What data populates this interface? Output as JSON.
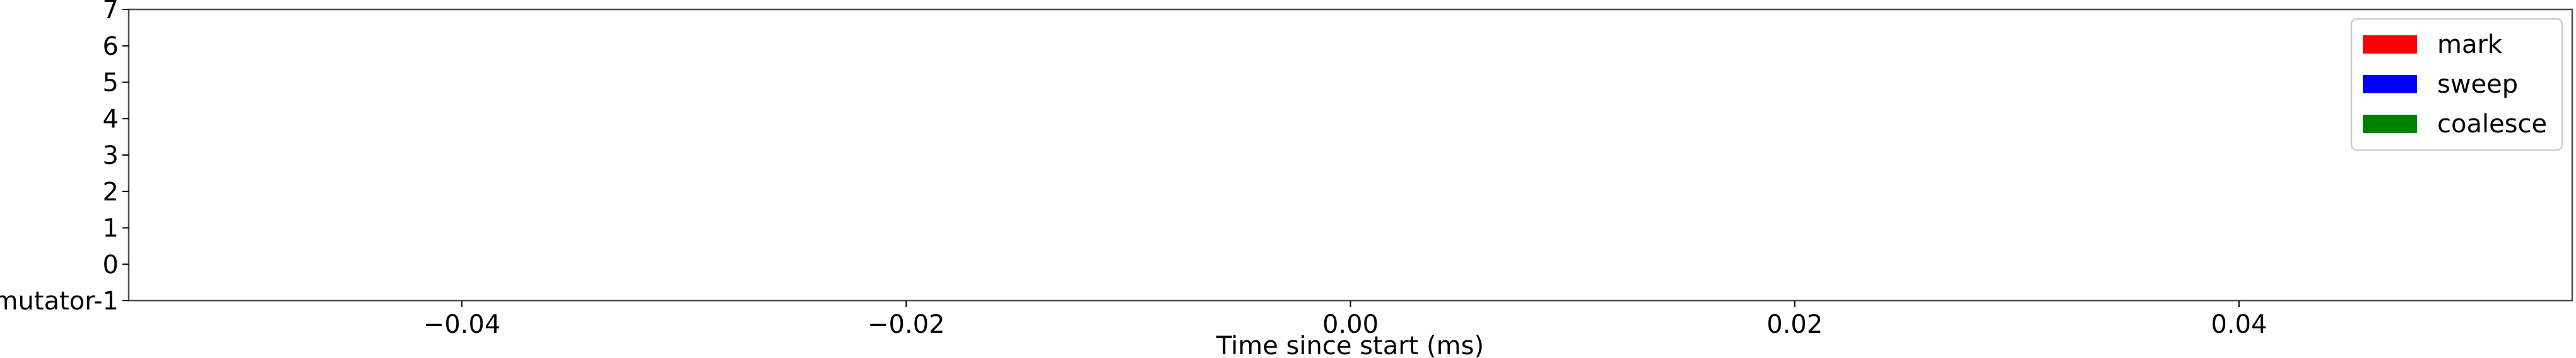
{
  "chart_data": {
    "type": "bar",
    "orientation": "horizontal",
    "title": "",
    "xlabel": "Time since start (ms)",
    "ylabel": "",
    "xlim": [
      -0.055,
      0.055
    ],
    "x_ticks": [
      -0.04,
      -0.02,
      0.0,
      0.02,
      0.04
    ],
    "x_tick_labels": [
      "−0.04",
      "−0.02",
      "0.00",
      "0.02",
      "0.04"
    ],
    "y_tick_labels": [
      "mutator-1",
      "0",
      "1",
      "2",
      "3",
      "4",
      "5",
      "6",
      "7"
    ],
    "grid": false,
    "legend_position": "top-right",
    "series": [
      {
        "name": "mark",
        "color": "#ff0000",
        "bars": []
      },
      {
        "name": "sweep",
        "color": "#0000ff",
        "bars": []
      },
      {
        "name": "coalesce",
        "color": "#008000",
        "bars": []
      }
    ]
  }
}
